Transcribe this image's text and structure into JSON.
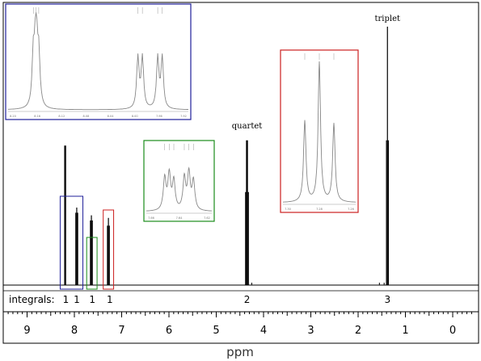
{
  "chart_data": {
    "type": "line",
    "xlabel": "ppm",
    "ylabel": "",
    "xlim": [
      9.45,
      -0.45
    ],
    "x_ticks": [
      "9",
      "8",
      "7",
      "6",
      "5",
      "4",
      "3",
      "2",
      "1",
      "0"
    ],
    "integrals_label": "integrals:",
    "integrals": [
      {
        "ppm": 8.18,
        "value": "1"
      },
      {
        "ppm": 7.95,
        "value": "1"
      },
      {
        "ppm": 7.62,
        "value": "1"
      },
      {
        "ppm": 7.25,
        "value": "1"
      },
      {
        "ppm": 4.35,
        "value": "2"
      },
      {
        "ppm": 1.38,
        "value": "3"
      }
    ],
    "peaks": [
      {
        "ppm": 8.205,
        "height": 0.54
      },
      {
        "ppm": 8.185,
        "height": 0.54
      },
      {
        "ppm": 7.97,
        "height": 0.28
      },
      {
        "ppm": 7.95,
        "height": 0.3
      },
      {
        "ppm": 7.93,
        "height": 0.28
      },
      {
        "ppm": 7.66,
        "height": 0.25
      },
      {
        "ppm": 7.64,
        "height": 0.27
      },
      {
        "ppm": 7.62,
        "height": 0.25
      },
      {
        "ppm": 7.3,
        "height": 0.23
      },
      {
        "ppm": 7.28,
        "height": 0.26
      },
      {
        "ppm": 7.26,
        "height": 0.23
      },
      {
        "ppm": 4.38,
        "height": 0.36
      },
      {
        "ppm": 4.36,
        "height": 0.56
      },
      {
        "ppm": 4.34,
        "height": 0.56
      },
      {
        "ppm": 4.32,
        "height": 0.36
      },
      {
        "ppm": 1.4,
        "height": 0.56
      },
      {
        "ppm": 1.38,
        "height": 1.0
      },
      {
        "ppm": 1.36,
        "height": 0.56
      }
    ],
    "annotations": [
      {
        "text": "quartet",
        "ppm": 4.35
      },
      {
        "text": "triplet",
        "ppm": 1.38
      }
    ],
    "boxes": [
      {
        "from_ppm": 8.3,
        "to_ppm": 7.82,
        "color": "#1f1f99"
      },
      {
        "from_ppm": 7.74,
        "to_ppm": 7.52,
        "color": "#1a8c1a"
      },
      {
        "from_ppm": 7.39,
        "to_ppm": 7.17,
        "color": "#cc2020"
      }
    ],
    "insets": [
      {
        "name": "blue-inset",
        "color": "#1f1f99",
        "ticks": [
          "8.20",
          "8.16",
          "8.12",
          "8.08",
          "8.04",
          "8.00",
          "7.96",
          "7.92"
        ]
      },
      {
        "name": "green-inset",
        "color": "#1a8c1a",
        "ticks": [
          "7.66",
          "7.64",
          "7.62"
        ]
      },
      {
        "name": "red-inset",
        "color": "#cc2020",
        "ticks": [
          "7.30",
          "7.28",
          "7.26"
        ]
      }
    ]
  }
}
